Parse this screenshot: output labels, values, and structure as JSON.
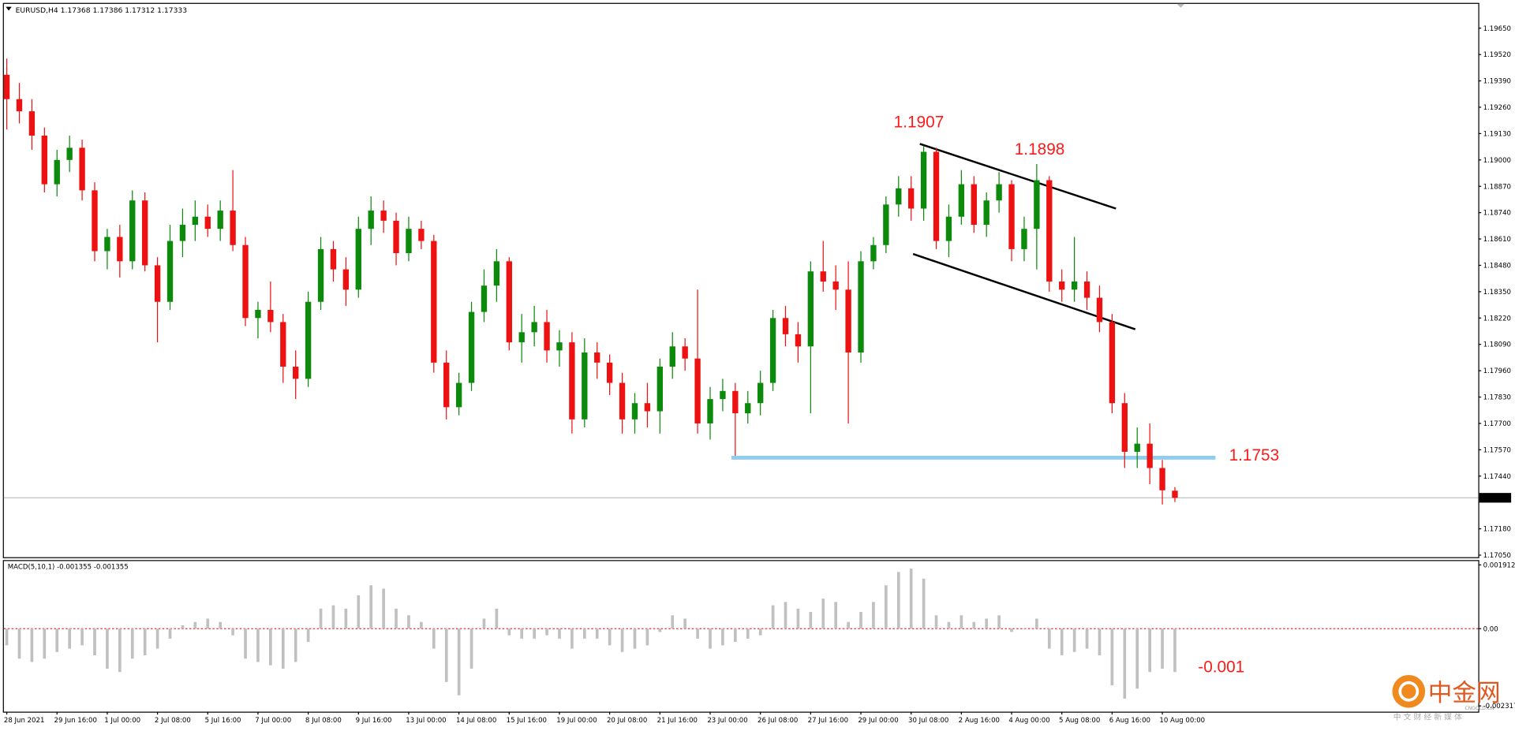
{
  "chart_data": {
    "type": "candlestick",
    "title": "EURUSD,H4  1.17368 1.17386 1.17312 1.17333",
    "up_color": "#0b8a0b",
    "down_color": "#ee1111",
    "categories": [
      "28 Jun 2021",
      null,
      null,
      null,
      "29 Jun 16:00",
      null,
      null,
      null,
      "1 Jul 00:00",
      null,
      null,
      null,
      "2 Jul 08:00",
      null,
      null,
      null,
      "5 Jul 16:00",
      null,
      null,
      null,
      "7 Jul 00:00",
      null,
      null,
      null,
      "8 Jul 08:00",
      null,
      null,
      null,
      "9 Jul 16:00",
      null,
      null,
      null,
      "13 Jul 00:00",
      null,
      null,
      null,
      "14 Jul 08:00",
      null,
      null,
      null,
      "15 Jul 16:00",
      null,
      null,
      null,
      "19 Jul 00:00",
      null,
      null,
      null,
      "20 Jul 08:00",
      null,
      null,
      null,
      "21 Jul 16:00",
      null,
      null,
      null,
      "23 Jul 00:00",
      null,
      null,
      null,
      "26 Jul 08:00",
      null,
      null,
      null,
      "27 Jul 16:00",
      null,
      null,
      null,
      "29 Jul 00:00",
      null,
      null,
      null,
      "30 Jul 08:00",
      null,
      null,
      null,
      "2 Aug 16:00",
      null,
      null,
      null,
      "4 Aug 00:00",
      null,
      null,
      null,
      "5 Aug 08:00",
      null,
      null,
      null,
      "6 Aug 16:00",
      null,
      null,
      null,
      "10 Aug 00:00",
      null
    ],
    "open": [
      1.1942,
      1.193,
      1.1924,
      1.1912,
      1.1888,
      1.19,
      1.1906,
      1.1885,
      1.1855,
      1.1862,
      1.185,
      1.188,
      1.1848,
      1.183,
      1.186,
      1.1868,
      1.1872,
      1.1866,
      1.1875,
      1.1858,
      1.1822,
      1.1826,
      1.182,
      1.1798,
      1.1792,
      1.183,
      1.1856,
      1.1846,
      1.1836,
      1.1866,
      1.1875,
      1.187,
      1.1854,
      1.1866,
      1.186,
      1.18,
      1.1778,
      1.179,
      1.1825,
      1.1838,
      1.185,
      1.181,
      1.1815,
      1.182,
      1.1806,
      1.181,
      1.1772,
      1.1805,
      1.18,
      1.179,
      1.1772,
      1.178,
      1.1776,
      1.1798,
      1.1808,
      1.1802,
      1.177,
      1.1782,
      1.1786,
      1.1775,
      1.178,
      1.179,
      1.1822,
      1.1814,
      1.1808,
      1.1845,
      1.184,
      1.1836,
      1.1805,
      1.185,
      1.1858,
      1.1878,
      1.1886,
      1.1876,
      1.1904,
      1.186,
      1.1872,
      1.1888,
      1.1868,
      1.188,
      1.1888,
      1.1856,
      1.1866,
      1.189,
      1.184,
      1.1836,
      1.184,
      1.1832,
      1.182,
      1.178,
      1.1756,
      1.176,
      1.1748,
      1.17368
    ],
    "high": [
      1.195,
      1.1938,
      1.193,
      1.1916,
      1.1905,
      1.1912,
      1.191,
      1.1889,
      1.1866,
      1.1868,
      1.1885,
      1.1884,
      1.1852,
      1.1868,
      1.1876,
      1.188,
      1.1878,
      1.188,
      1.1895,
      1.1862,
      1.183,
      1.184,
      1.1824,
      1.1806,
      1.1835,
      1.1862,
      1.186,
      1.1852,
      1.1872,
      1.1882,
      1.188,
      1.1874,
      1.1872,
      1.187,
      1.1863,
      1.1806,
      1.1795,
      1.183,
      1.1846,
      1.1856,
      1.1852,
      1.1824,
      1.1828,
      1.1826,
      1.1816,
      1.1815,
      1.1812,
      1.181,
      1.1804,
      1.1795,
      1.1785,
      1.179,
      1.1802,
      1.1815,
      1.1812,
      1.1836,
      1.1788,
      1.1792,
      1.179,
      1.1786,
      1.1796,
      1.1826,
      1.1828,
      1.182,
      1.185,
      1.186,
      1.1848,
      1.185,
      1.1855,
      1.1862,
      1.1882,
      1.1892,
      1.1892,
      1.1907,
      1.1906,
      1.1878,
      1.1895,
      1.1892,
      1.1884,
      1.1894,
      1.189,
      1.1872,
      1.1898,
      1.1892,
      1.1846,
      1.1862,
      1.1845,
      1.1838,
      1.1824,
      1.1785,
      1.1768,
      1.177,
      1.1752,
      1.17386
    ],
    "low": [
      1.1915,
      1.1918,
      1.1905,
      1.1884,
      1.1882,
      1.1894,
      1.188,
      1.185,
      1.1846,
      1.1842,
      1.1846,
      1.1845,
      1.181,
      1.1826,
      1.1852,
      1.186,
      1.1862,
      1.186,
      1.1855,
      1.1818,
      1.1812,
      1.1815,
      1.179,
      1.1782,
      1.1788,
      1.1826,
      1.184,
      1.1828,
      1.1832,
      1.1858,
      1.1864,
      1.1848,
      1.185,
      1.1856,
      1.1795,
      1.1772,
      1.1774,
      1.1786,
      1.182,
      1.183,
      1.1806,
      1.18,
      1.1808,
      1.18,
      1.1798,
      1.1765,
      1.1768,
      1.1792,
      1.1784,
      1.1765,
      1.1765,
      1.1768,
      1.1765,
      1.1792,
      1.1796,
      1.1765,
      1.1762,
      1.1776,
      1.1754,
      1.177,
      1.1774,
      1.1786,
      1.1808,
      1.18,
      1.1775,
      1.1835,
      1.1826,
      1.177,
      1.18,
      1.1846,
      1.1854,
      1.1872,
      1.187,
      1.187,
      1.1856,
      1.1852,
      1.1868,
      1.1864,
      1.1862,
      1.1874,
      1.185,
      1.185,
      1.1846,
      1.1835,
      1.183,
      1.183,
      1.1826,
      1.1815,
      1.1775,
      1.1748,
      1.1748,
      1.174,
      1.173,
      1.17312
    ],
    "close": [
      1.193,
      1.1924,
      1.1912,
      1.1888,
      1.19,
      1.1906,
      1.1885,
      1.1855,
      1.1862,
      1.185,
      1.188,
      1.1848,
      1.183,
      1.186,
      1.1868,
      1.1872,
      1.1866,
      1.1875,
      1.1858,
      1.1822,
      1.1826,
      1.182,
      1.1798,
      1.1792,
      1.183,
      1.1856,
      1.1846,
      1.1836,
      1.1866,
      1.1875,
      1.187,
      1.1854,
      1.1866,
      1.186,
      1.18,
      1.1778,
      1.179,
      1.1825,
      1.1838,
      1.185,
      1.181,
      1.1815,
      1.182,
      1.1806,
      1.181,
      1.1772,
      1.1805,
      1.18,
      1.179,
      1.1772,
      1.178,
      1.1776,
      1.1798,
      1.1808,
      1.1802,
      1.177,
      1.1782,
      1.1786,
      1.1775,
      1.178,
      1.179,
      1.1822,
      1.1814,
      1.1808,
      1.1845,
      1.184,
      1.1836,
      1.1805,
      1.185,
      1.1858,
      1.1878,
      1.1886,
      1.1876,
      1.1904,
      1.186,
      1.1872,
      1.1888,
      1.1868,
      1.188,
      1.1888,
      1.1856,
      1.1866,
      1.189,
      1.184,
      1.1836,
      1.184,
      1.1832,
      1.182,
      1.178,
      1.1756,
      1.176,
      1.1748,
      1.1737,
      1.17333
    ],
    "ylim": [
      1.1704,
      1.1977
    ],
    "yticks": [
      {
        "value": 1.1965,
        "label": "1.19650"
      },
      {
        "value": 1.1952,
        "label": "1.19520"
      },
      {
        "value": 1.1939,
        "label": "1.19390"
      },
      {
        "value": 1.1926,
        "label": "1.19260"
      },
      {
        "value": 1.1913,
        "label": "1.19130"
      },
      {
        "value": 1.19,
        "label": "1.19000"
      },
      {
        "value": 1.1887,
        "label": "1.18870"
      },
      {
        "value": 1.1874,
        "label": "1.18740"
      },
      {
        "value": 1.1861,
        "label": "1.18610"
      },
      {
        "value": 1.1848,
        "label": "1.18480"
      },
      {
        "value": 1.1835,
        "label": "1.18350"
      },
      {
        "value": 1.1822,
        "label": "1.18220"
      },
      {
        "value": 1.1809,
        "label": "1.18090"
      },
      {
        "value": 1.1796,
        "label": "1.17960"
      },
      {
        "value": 1.1783,
        "label": "1.17830"
      },
      {
        "value": 1.177,
        "label": "1.17700"
      },
      {
        "value": 1.1757,
        "label": "1.17570"
      },
      {
        "value": 1.1744,
        "label": "1.17440"
      },
      {
        "value": 1.1718,
        "label": "1.17180"
      },
      {
        "value": 1.1705,
        "label": "1.17050"
      }
    ],
    "current_price": {
      "value": 1.17333,
      "label": "1.17333"
    },
    "annotations": [
      "1.1907",
      "1.1898",
      "1.1753",
      "-0.001"
    ],
    "macd": {
      "type": "bar",
      "title": "MACD(5,10,1) -0.001355 -0.001355",
      "color": "#c0c0c0",
      "values": [
        -0.0005,
        -0.0009,
        -0.001,
        -0.0009,
        -0.0007,
        -0.0006,
        -0.0005,
        -0.0008,
        -0.0012,
        -0.0013,
        -0.0009,
        -0.0008,
        -0.0006,
        -0.0003,
        0.0001,
        0.0002,
        0.0003,
        0.0002,
        -0.0002,
        -0.0009,
        -0.001,
        -0.0011,
        -0.0012,
        -0.001,
        -0.0004,
        0.0006,
        0.0007,
        0.0006,
        0.001,
        0.0013,
        0.0012,
        0.0006,
        0.0004,
        0.0002,
        -0.0006,
        -0.0016,
        -0.002,
        -0.0012,
        0.0003,
        0.0006,
        -0.0002,
        -0.0003,
        -0.0003,
        -0.0002,
        -0.0003,
        -0.0006,
        -0.0003,
        -0.0003,
        -0.0005,
        -0.0007,
        -0.0006,
        -0.0005,
        -0.0001,
        0.0004,
        0.0003,
        -0.0003,
        -0.0006,
        -0.0005,
        -0.0004,
        -0.0003,
        -0.0002,
        0.0007,
        0.0008,
        0.0006,
        0.0005,
        0.0009,
        0.0008,
        0.0002,
        0.0005,
        0.0008,
        0.0013,
        0.0017,
        0.0018,
        0.0015,
        0.0004,
        0.0002,
        0.0004,
        0.0002,
        0.0003,
        0.0004,
        -0.0001,
        0,
        0.0003,
        -0.0006,
        -0.0008,
        -0.0007,
        -0.0006,
        -0.0008,
        -0.0017,
        -0.0021,
        -0.0018,
        -0.0013,
        -0.0012,
        -0.0013
      ],
      "y2lim": [
        -0.002317,
        0.001912
      ],
      "y2ticks": [
        0.001912,
        {
          "value": 0,
          "label": "0.00"
        },
        -0.002317
      ]
    }
  },
  "watermark": {
    "name": "中金网",
    "site": "CNGOLD.CN",
    "slogan": "中 文 财 经 新 媒 体"
  }
}
